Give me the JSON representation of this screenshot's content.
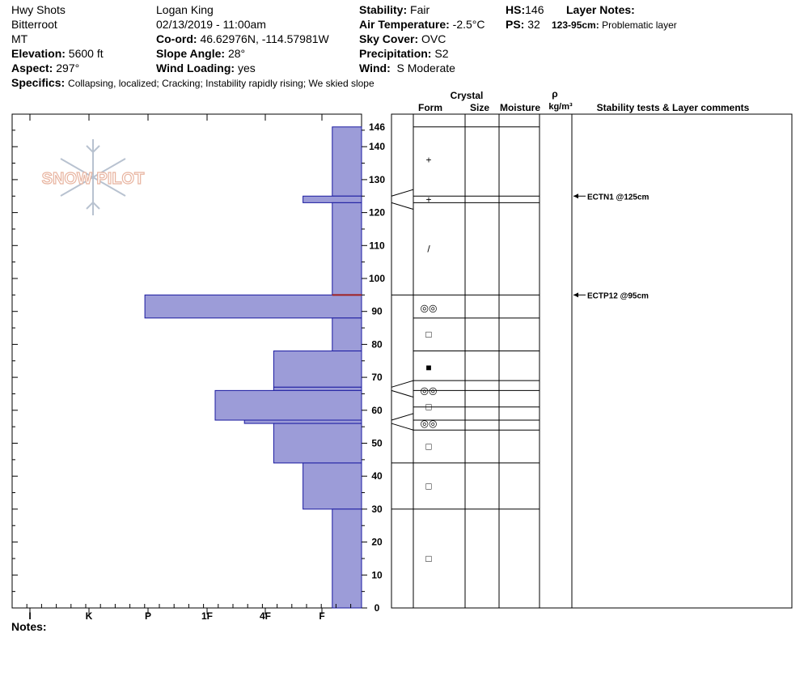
{
  "header": {
    "location": "Hwy Shots",
    "range": "Bitterroot",
    "state": "MT",
    "elevation_label": "Elevation:",
    "elevation": "5600 ft",
    "aspect_label": "Aspect:",
    "aspect": "297°",
    "observer": "Logan King",
    "datetime": "02/13/2019 - 11:00am",
    "coord_label": "Co-ord:",
    "coord": "46.62976N, -114.57981W",
    "slope_label": "Slope Angle:",
    "slope": "28°",
    "wind_loading_label": "Wind Loading:",
    "wind_loading": "yes",
    "stability_label": "Stability:",
    "stability": "Fair",
    "air_temp_label": "Air Temperature:",
    "air_temp": "-2.5°C",
    "sky_label": "Sky Cover:",
    "sky": "OVC",
    "precip_label": "Precipitation:",
    "precip": "S2",
    "wind_label": "Wind:",
    "wind": "S Moderate",
    "hs_label": "HS:",
    "hs": "146",
    "ps_label": "PS:",
    "ps": "32",
    "layer_notes_label": "Layer Notes:",
    "layer_note_range": "123-95cm:",
    "layer_note_text": "Problematic layer",
    "specifics_label": "Specifics:",
    "specifics": "Collapsing, localized;  Cracking;  Instability rapidly rising;  We skied slope"
  },
  "logo_text": "SNOW PILOT",
  "notes_label": "Notes:",
  "columns": {
    "crystal": "Crystal",
    "form": "Form",
    "size": "Size",
    "moisture": "Moisture",
    "rho": "ρ",
    "density_unit": "kg/m³",
    "stability": "Stability tests & Layer comments"
  },
  "colors": {
    "hardness_fill": "#9c9cd8",
    "hardness_stroke": "#1a1aa0",
    "critical_line": "#a02020"
  },
  "chart_data": {
    "type": "bar",
    "x_ticks": [
      "I",
      "K",
      "P",
      "1F",
      "4F",
      "F"
    ],
    "y_ticks": [
      0,
      10,
      20,
      30,
      40,
      50,
      60,
      70,
      80,
      90,
      100,
      110,
      120,
      130,
      140,
      146
    ],
    "ylim": [
      0,
      146
    ],
    "critical_depth": 95,
    "layers": [
      {
        "top": 146,
        "bottom": 125,
        "hardness": 0.5
      },
      {
        "top": 125,
        "bottom": 123,
        "hardness": 1.0
      },
      {
        "top": 123,
        "bottom": 95,
        "hardness": 0.5
      },
      {
        "top": 95,
        "bottom": 88,
        "hardness": 3.7
      },
      {
        "top": 88,
        "bottom": 78,
        "hardness": 0.5
      },
      {
        "top": 78,
        "bottom": 67,
        "hardness": 1.5
      },
      {
        "top": 67,
        "bottom": 66,
        "hardness": 1.5
      },
      {
        "top": 66,
        "bottom": 57,
        "hardness": 2.5
      },
      {
        "top": 57,
        "bottom": 56,
        "hardness": 2.0
      },
      {
        "top": 56,
        "bottom": 44,
        "hardness": 1.5
      },
      {
        "top": 44,
        "bottom": 30,
        "hardness": 1.0
      },
      {
        "top": 30,
        "bottom": 0,
        "hardness": 0.5
      }
    ],
    "crystal_forms": [
      {
        "depth": 136,
        "symbol": "+"
      },
      {
        "depth": 124,
        "symbol": "+"
      },
      {
        "depth": 109,
        "symbol": "/"
      },
      {
        "depth": 91,
        "symbol": "◎◎"
      },
      {
        "depth": 83,
        "symbol": "□"
      },
      {
        "depth": 73,
        "symbol": "■"
      },
      {
        "depth": 66,
        "symbol": "◎◎"
      },
      {
        "depth": 61,
        "symbol": "□"
      },
      {
        "depth": 56,
        "symbol": "◎◎"
      },
      {
        "depth": 49,
        "symbol": "□"
      },
      {
        "depth": 37,
        "symbol": "□"
      },
      {
        "depth": 15,
        "symbol": "□"
      }
    ],
    "stability_tests": [
      {
        "depth": 125,
        "label": "ECTN1 @125cm"
      },
      {
        "depth": 95,
        "label": "ECTP12 @95cm"
      }
    ]
  }
}
